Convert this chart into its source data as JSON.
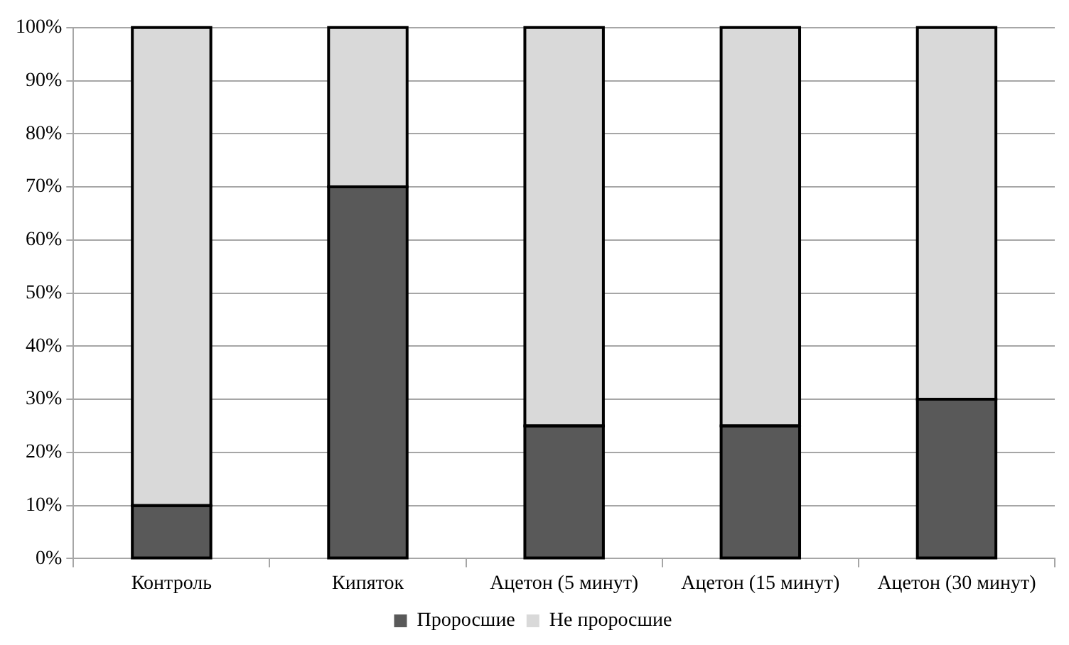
{
  "chart_data": {
    "type": "bar",
    "stacked": true,
    "categories": [
      "Контроль",
      "Кипяток",
      "Ацетон (5 минут)",
      "Ацетон (15 минут)",
      "Ацетон (30 минут)"
    ],
    "series": [
      {
        "name": "Проросшие",
        "color": "#595959",
        "values": [
          10,
          70,
          25,
          25,
          30
        ]
      },
      {
        "name": "Не проросшие",
        "color": "#d9d9d9",
        "values": [
          90,
          30,
          75,
          75,
          70
        ]
      }
    ],
    "ylim": [
      0,
      100
    ],
    "yticks": [
      {
        "value": 0,
        "label": "0%"
      },
      {
        "value": 10,
        "label": "10%"
      },
      {
        "value": 20,
        "label": "20%"
      },
      {
        "value": 30,
        "label": "30%"
      },
      {
        "value": 40,
        "label": "40%"
      },
      {
        "value": 50,
        "label": "50%"
      },
      {
        "value": 60,
        "label": "60%"
      },
      {
        "value": 70,
        "label": "70%"
      },
      {
        "value": 80,
        "label": "80%"
      },
      {
        "value": 90,
        "label": "90%"
      },
      {
        "value": 100,
        "label": "100%"
      }
    ],
    "grid": "y",
    "legend": "bottom"
  }
}
